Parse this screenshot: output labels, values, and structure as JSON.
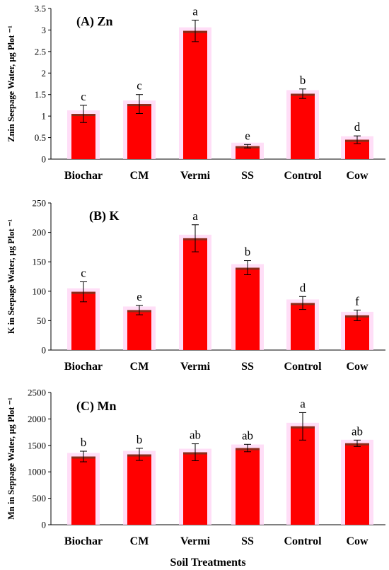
{
  "colors": {
    "bar_fill": "#ff0000",
    "bar_cap": "#8b2c1a",
    "bar_glow": "#ffd6f5",
    "axis": "#000000",
    "error_bar": "#000000"
  },
  "x_axis_title": "Soil Treatments",
  "chart_data": [
    {
      "type": "bar",
      "title": "(A) Zn",
      "ylabel": "Znin Seepage Water, µg Plot ⁻¹",
      "categories": [
        "Biochar",
        "CM",
        "Vermi",
        "SS",
        "Control",
        "Cow"
      ],
      "values": [
        1.05,
        1.28,
        2.98,
        0.3,
        1.52,
        0.45
      ],
      "errors": [
        0.2,
        0.22,
        0.25,
        0.04,
        0.11,
        0.09
      ],
      "letters": [
        "c",
        "c",
        "a",
        "e",
        "b",
        "d"
      ],
      "ylim": [
        0,
        3.5
      ],
      "yticks": [
        0,
        0.5,
        1,
        1.5,
        2,
        2.5,
        3,
        3.5
      ],
      "ytick_labels": [
        "0",
        "0.5",
        "1",
        "1.5",
        "2",
        "2.5",
        "3",
        "3.5"
      ]
    },
    {
      "type": "bar",
      "title": "(B) K",
      "ylabel": "K in Seepage Water, µg Plot ⁻¹",
      "categories": [
        "Biochar",
        "CM",
        "Vermi",
        "SS",
        "Control",
        "Cow"
      ],
      "values": [
        99,
        68,
        190,
        140,
        80,
        59
      ],
      "errors": [
        17,
        8,
        23,
        12,
        11,
        9
      ],
      "letters": [
        "c",
        "e",
        "a",
        "b",
        "d",
        "f"
      ],
      "ylim": [
        0,
        250
      ],
      "yticks": [
        0,
        50,
        100,
        150,
        200,
        250
      ],
      "ytick_labels": [
        "0",
        "50",
        "100",
        "150",
        "200",
        "250"
      ]
    },
    {
      "type": "bar",
      "title": "(C) Mn",
      "ylabel": "Mn in Seppage Water, µg Plot ⁻¹",
      "categories": [
        "Biochar",
        "CM",
        "Vermi",
        "SS",
        "Control",
        "Cow"
      ],
      "values": [
        1290,
        1330,
        1370,
        1450,
        1860,
        1540
      ],
      "errors": [
        100,
        115,
        160,
        70,
        260,
        60
      ],
      "letters": [
        "b",
        "b",
        "ab",
        "ab",
        "a",
        "ab"
      ],
      "ylim": [
        0,
        2500
      ],
      "yticks": [
        0,
        500,
        1000,
        1500,
        2000,
        2500
      ],
      "ytick_labels": [
        "0",
        "500",
        "1000",
        "1500",
        "2000",
        "2500"
      ]
    }
  ]
}
